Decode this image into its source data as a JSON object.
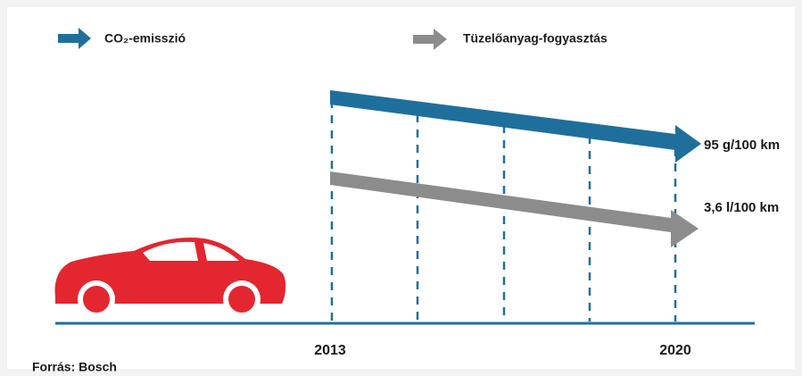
{
  "legend": [
    {
      "label": "CO₂-emisszió"
    },
    {
      "label": "Tüzelőanyag-fogyasztás"
    }
  ],
  "annotations": [
    {
      "label": "95 g/100 km"
    },
    {
      "label": "3,6 l/100 km"
    }
  ],
  "years": [
    "2013",
    "2020"
  ],
  "source": "Forrás: Bosch"
}
